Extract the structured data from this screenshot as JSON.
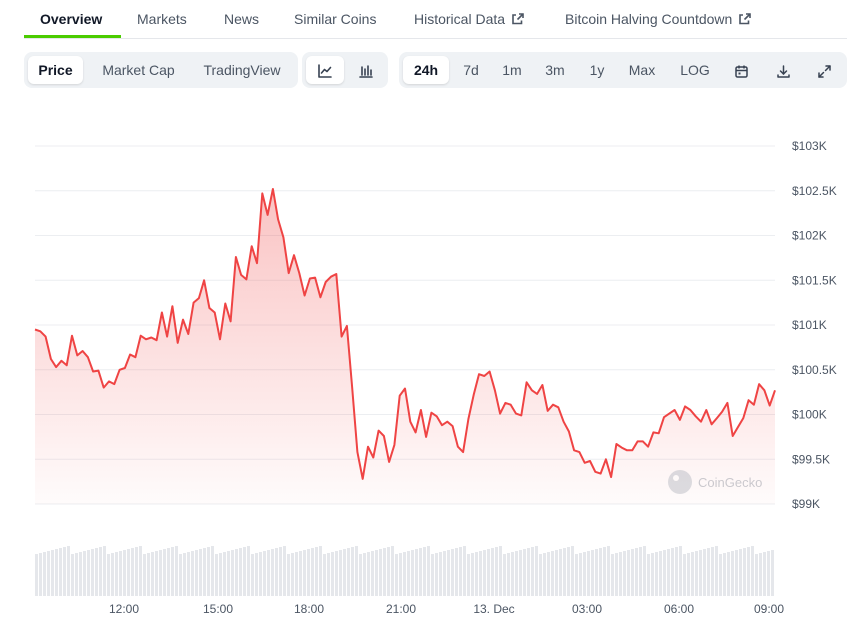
{
  "nav": {
    "tabs": [
      {
        "label": "Overview",
        "active": true
      },
      {
        "label": "Markets"
      },
      {
        "label": "News"
      },
      {
        "label": "Similar Coins"
      },
      {
        "label": "Historical Data",
        "icon": "external-link-icon"
      },
      {
        "label": "Bitcoin Halving Countdown",
        "icon": "external-link-icon"
      }
    ]
  },
  "toolbar": {
    "metrics": [
      {
        "label": "Price",
        "selected": true
      },
      {
        "label": "Market Cap"
      },
      {
        "label": "TradingView"
      }
    ],
    "chart_types": [
      {
        "icon": "line-chart-icon",
        "selected": true
      },
      {
        "icon": "candlestick-chart-icon"
      }
    ],
    "ranges": [
      {
        "label": "24h",
        "selected": true
      },
      {
        "label": "7d"
      },
      {
        "label": "1m"
      },
      {
        "label": "3m"
      },
      {
        "label": "1y"
      },
      {
        "label": "Max"
      },
      {
        "label": "LOG"
      }
    ],
    "actions": [
      "calendar-icon",
      "download-icon",
      "fullscreen-icon"
    ]
  },
  "colors": {
    "line": "#ef4444",
    "brand_green": "#4bcc00",
    "volume": "#e5e7eb"
  },
  "watermark": "CoinGecko",
  "chart_data": {
    "type": "area",
    "series": [
      {
        "values": [
          100950,
          100930,
          100870,
          100620,
          100530,
          100600,
          100550,
          100880,
          100660,
          100710,
          100640,
          100480,
          100490,
          100300,
          100370,
          100340,
          100500,
          100520,
          100670,
          100640,
          100880,
          100840,
          100860,
          100830,
          101140,
          100870,
          101210,
          100800,
          101060,
          100900,
          101250,
          101300,
          101500,
          101190,
          101140,
          100840,
          101240,
          101040,
          101760,
          101560,
          101510,
          101880,
          101690,
          102470,
          102230,
          102520,
          102180,
          101980,
          101580,
          101780,
          101580,
          101330,
          101520,
          101530,
          101310,
          101480,
          101540,
          101570,
          100870,
          100990,
          100310,
          99580,
          99280,
          99640,
          99520,
          99820,
          99760,
          99470,
          99660,
          100210,
          100290,
          99920,
          99800,
          100050,
          99750,
          100020,
          99980,
          99880,
          99920,
          99870,
          99640,
          99580,
          99950,
          100220,
          100450,
          100430,
          100480,
          100270,
          100010,
          100130,
          100110,
          100010,
          99990,
          100360,
          100270,
          100230,
          100330,
          100040,
          100110,
          100080,
          99920,
          99810,
          99600,
          99580,
          99460,
          99480,
          99360,
          99340,
          99500,
          99300,
          99670,
          99630,
          99600,
          99600,
          99700,
          99700,
          99640,
          99800,
          99790,
          99970,
          100010,
          100050,
          99940,
          100090,
          100050,
          99980,
          99920,
          100050,
          99890,
          99960,
          100030,
          100130,
          99760,
          99860,
          99960,
          100160,
          100110,
          100340,
          100270,
          100100,
          100270
        ]
      }
    ],
    "x_tick_labels": [
      "12:00",
      "15:00",
      "18:00",
      "21:00",
      "13. Dec",
      "03:00",
      "06:00",
      "09:00"
    ],
    "y_tick_labels": [
      "$103K",
      "$102.5K",
      "$102K",
      "$101.5K",
      "$101K",
      "$100.5K",
      "$100K",
      "$99.5K",
      "$99K"
    ],
    "ylim": [
      99000,
      103000
    ],
    "grid": true,
    "volume": true
  }
}
